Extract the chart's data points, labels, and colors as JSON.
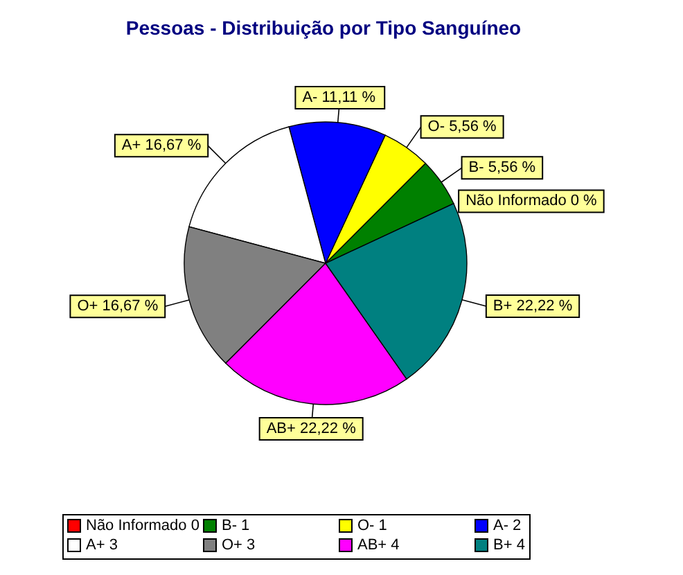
{
  "chart_data": {
    "type": "pie",
    "title": "Pessoas - Distribuição por Tipo Sanguíneo",
    "categories": [
      "Não Informado 0",
      "B- 1",
      "O- 1",
      "A- 2",
      "A+ 3",
      "O+ 3",
      "AB+ 4",
      "B+ 4"
    ],
    "values": [
      0,
      5.56,
      5.56,
      11.11,
      16.67,
      16.67,
      22.22,
      22.22
    ],
    "colors": [
      "#ff0000",
      "#008000",
      "#ffff00",
      "#0000ff",
      "#ffffff",
      "#808080",
      "#ff00ff",
      "#008080"
    ],
    "value_labels": [
      "Não Informado 0 %",
      "B- 5,56 %",
      "O- 5,56 %",
      "A- 11,11 %",
      "A+ 16,67 %",
      "O+ 16,67 %",
      "AB+ 22,22 %",
      "B+ 22,22 %"
    ],
    "legend": "bottom"
  }
}
